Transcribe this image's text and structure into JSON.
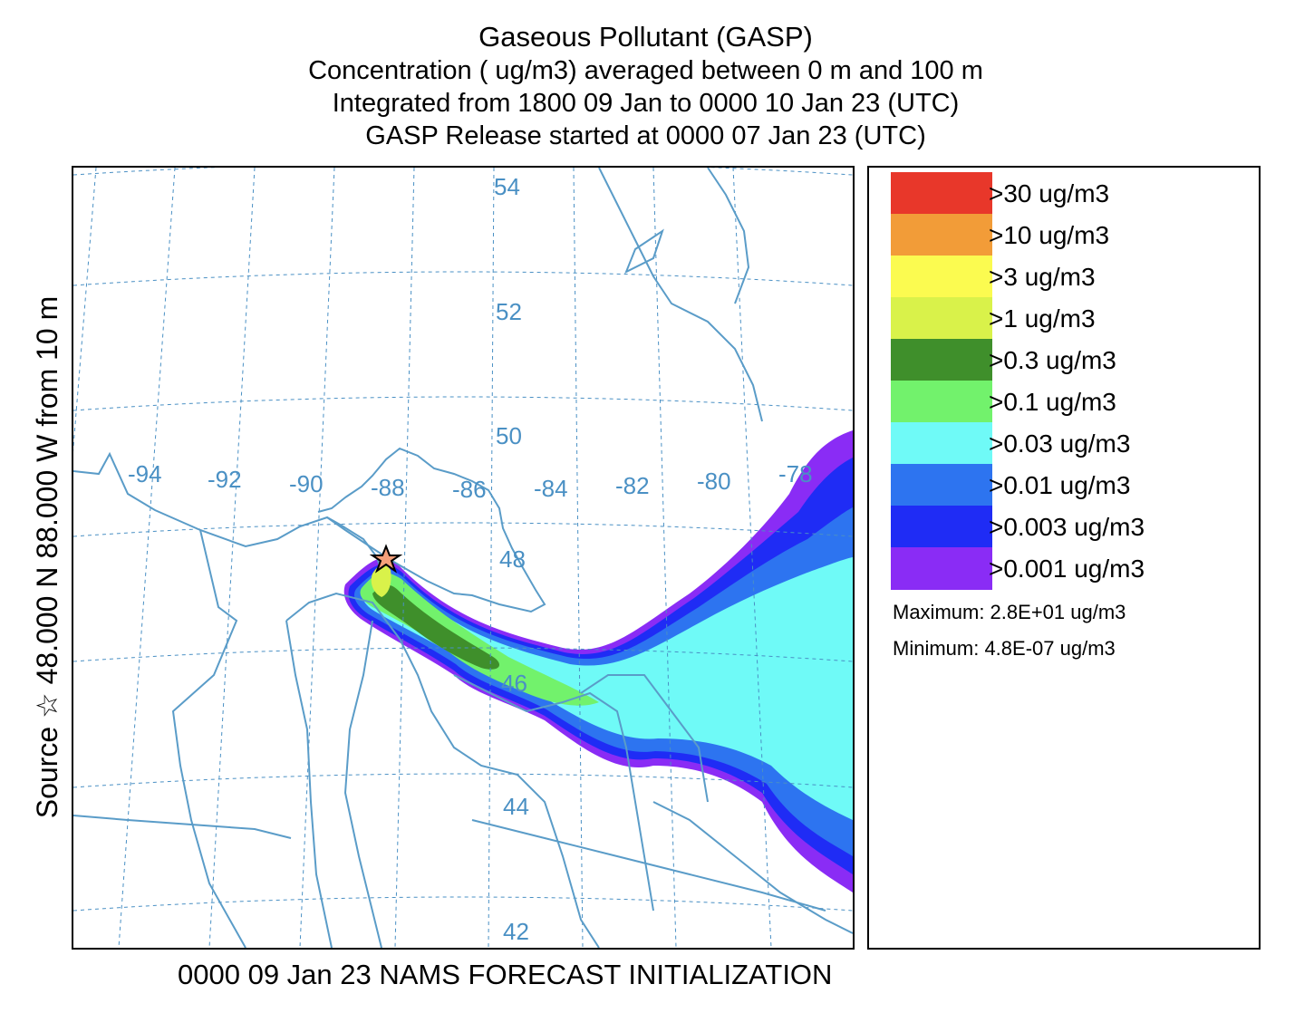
{
  "title": {
    "line1": "Gaseous Pollutant (GASP)",
    "line2": "Concentration  ( ug/m3) averaged between     0 m and   100 m",
    "line3": "Integrated from 1800 09 Jan to 0000 10 Jan 23 (UTC)",
    "line4": "GASP Release started at 0000 07 Jan 23 (UTC)"
  },
  "side_label": "Source ☆ 48.000  N  88.000  W     from    10 m",
  "footer": "0000 09 Jan 23 NAMS FORECAST INITIALIZATION",
  "map": {
    "latitude_labels": [
      "54",
      "52",
      "50",
      "48",
      "46",
      "44",
      "42"
    ],
    "longitude_labels": [
      "-94",
      "-92",
      "-90",
      "-88",
      "-86",
      "-84",
      "-82",
      "-80",
      "-78"
    ],
    "source_marker": "star-icon",
    "grid_color": "#4a90c4",
    "coast_color": "#5a9cc8"
  },
  "legend": {
    "entries": [
      {
        "label": ">30  ug/m3",
        "color": "#e8372a"
      },
      {
        "label": ">10  ug/m3",
        "color": "#f29c38"
      },
      {
        "label": ">3  ug/m3",
        "color": "#fbfb50"
      },
      {
        "label": ">1  ug/m3",
        "color": "#d9f24a"
      },
      {
        "label": ">0.3  ug/m3",
        "color": "#3f8f2b"
      },
      {
        "label": ">0.1  ug/m3",
        "color": "#72f26c"
      },
      {
        "label": ">0.03  ug/m3",
        "color": "#6ffaf7"
      },
      {
        "label": ">0.01  ug/m3",
        "color": "#2d74f0"
      },
      {
        "label": ">0.003  ug/m3",
        "color": "#1f2cf5"
      },
      {
        "label": ">0.001  ug/m3",
        "color": "#8a2cf5"
      }
    ],
    "maximum": "Maximum: 2.8E+01  ug/m3",
    "minimum": "Minimum: 4.8E-07  ug/m3"
  }
}
